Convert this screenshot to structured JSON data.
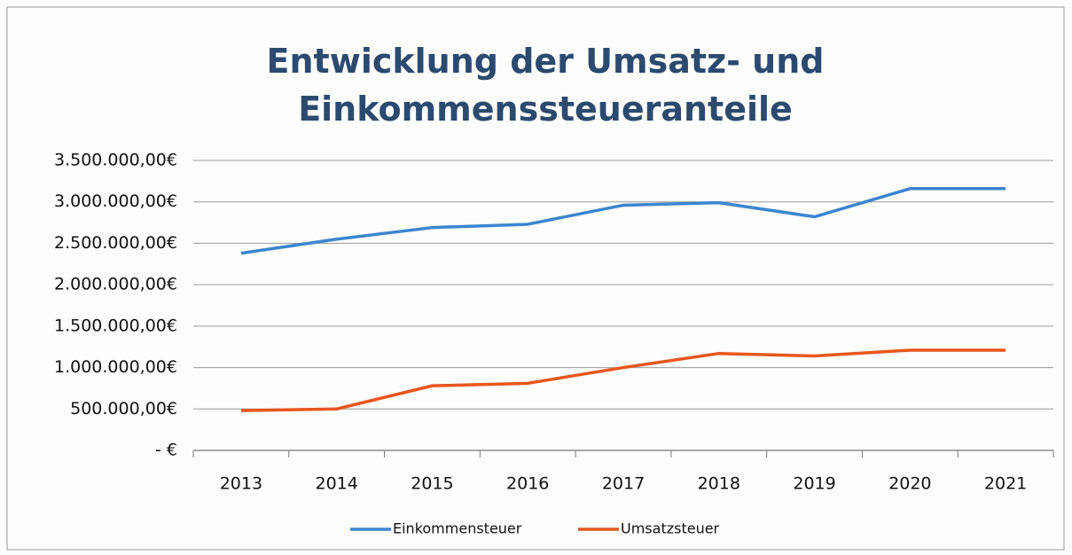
{
  "chart_data": {
    "type": "line",
    "title": "Entwicklung der Umsatz- und Einkommenssteueranteile",
    "categories": [
      "2013",
      "2014",
      "2015",
      "2016",
      "2017",
      "2018",
      "2019",
      "2020",
      "2021"
    ],
    "series": [
      {
        "name": "Einkommensteuer",
        "color": "#3b86d0",
        "values": [
          2380000,
          2550000,
          2690000,
          2730000,
          2960000,
          2990000,
          2820000,
          3160000,
          3160000
        ]
      },
      {
        "name": "Umsatzsteuer",
        "color": "#e8561c",
        "values": [
          480000,
          500000,
          780000,
          810000,
          1000000,
          1170000,
          1140000,
          1210000,
          1210000
        ]
      }
    ],
    "ylim": [
      0,
      3500000
    ],
    "yticks": [
      {
        "value": 0,
        "label": "-   €"
      },
      {
        "value": 500000,
        "label": "500.000,00€"
      },
      {
        "value": 1000000,
        "label": "1.000.000,00€"
      },
      {
        "value": 1500000,
        "label": "1.500.000,00€"
      },
      {
        "value": 2000000,
        "label": "2.000.000,00€"
      },
      {
        "value": 2500000,
        "label": "2.500.000,00€"
      },
      {
        "value": 3000000,
        "label": "3.000.000,00€"
      },
      {
        "value": 3500000,
        "label": "3.500.000,00€"
      }
    ],
    "grid": true,
    "legend": "bottom"
  }
}
